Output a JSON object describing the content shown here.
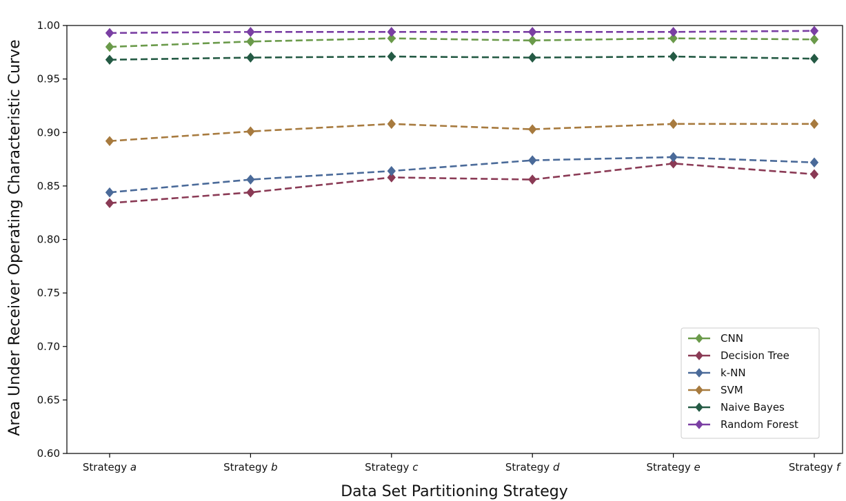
{
  "chart_data": {
    "type": "line",
    "xlabel": "Data Set Partitioning Strategy",
    "ylabel": "Area Under Receiver Operating Characteristic Curve",
    "categories": [
      {
        "prefix": "Strategy ",
        "letter": "a"
      },
      {
        "prefix": "Strategy ",
        "letter": "b"
      },
      {
        "prefix": "Strategy ",
        "letter": "c"
      },
      {
        "prefix": "Strategy ",
        "letter": "d"
      },
      {
        "prefix": "Strategy ",
        "letter": "e"
      },
      {
        "prefix": "Strategy ",
        "letter": "f"
      }
    ],
    "ylim": [
      0.6,
      1.0
    ],
    "yticks": [
      "0.60",
      "0.65",
      "0.70",
      "0.75",
      "0.80",
      "0.85",
      "0.90",
      "0.95",
      "1.00"
    ],
    "grid": false,
    "legend_position": "bottom-right",
    "line_style": "dashed",
    "marker": "diamond",
    "series": [
      {
        "name": "CNN",
        "color": "#6a9a4a",
        "values": [
          0.98,
          0.985,
          0.988,
          0.986,
          0.988,
          0.987
        ]
      },
      {
        "name": "Decision Tree",
        "color": "#8a3a55",
        "values": [
          0.834,
          0.844,
          0.858,
          0.856,
          0.871,
          0.861
        ]
      },
      {
        "name": "k-NN",
        "color": "#4a6a99",
        "values": [
          0.844,
          0.856,
          0.864,
          0.874,
          0.877,
          0.872
        ]
      },
      {
        "name": "SVM",
        "color": "#a77a3e",
        "values": [
          0.892,
          0.901,
          0.908,
          0.903,
          0.908,
          0.908
        ]
      },
      {
        "name": "Naive Bayes",
        "color": "#245a44",
        "values": [
          0.968,
          0.97,
          0.971,
          0.97,
          0.971,
          0.969
        ]
      },
      {
        "name": "Random Forest",
        "color": "#7a3fa3",
        "values": [
          0.993,
          0.994,
          0.994,
          0.994,
          0.994,
          0.995
        ]
      }
    ]
  }
}
